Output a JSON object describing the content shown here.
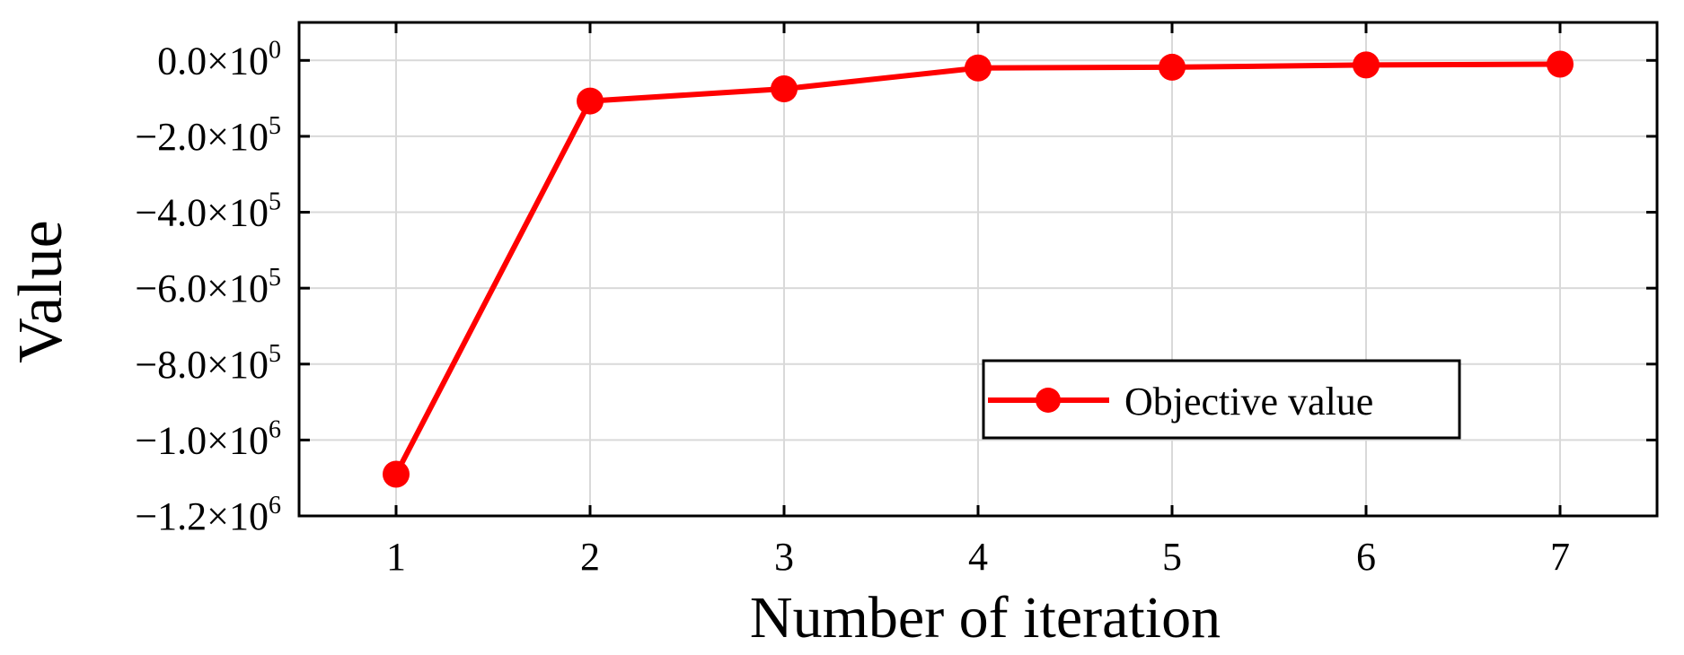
{
  "chart_data": {
    "type": "line",
    "xlabel": "Number of iteration",
    "ylabel": "Value",
    "x": [
      1,
      2,
      3,
      4,
      5,
      6,
      7
    ],
    "xlim": [
      0.5,
      7.5
    ],
    "ylim": [
      -1200000,
      100000
    ],
    "grid": true,
    "legend_position": "bottom-right",
    "x_ticks": [
      {
        "value": 1,
        "label": "1"
      },
      {
        "value": 2,
        "label": "2"
      },
      {
        "value": 3,
        "label": "3"
      },
      {
        "value": 4,
        "label": "4"
      },
      {
        "value": 5,
        "label": "5"
      },
      {
        "value": 6,
        "label": "6"
      },
      {
        "value": 7,
        "label": "7"
      }
    ],
    "y_ticks": [
      {
        "value": 0,
        "mantissa": "0.0×10",
        "exp": "0"
      },
      {
        "value": -200000,
        "mantissa": "−2.0×10",
        "exp": "5"
      },
      {
        "value": -400000,
        "mantissa": "−4.0×10",
        "exp": "5"
      },
      {
        "value": -600000,
        "mantissa": "−6.0×10",
        "exp": "5"
      },
      {
        "value": -800000,
        "mantissa": "−8.0×10",
        "exp": "5"
      },
      {
        "value": -1000000,
        "mantissa": "−1.0×10",
        "exp": "6"
      },
      {
        "value": -1200000,
        "mantissa": "−1.2×10",
        "exp": "6"
      }
    ],
    "series": [
      {
        "name": "Objective value",
        "color": "#ff0000",
        "values": [
          -1090000,
          -107000,
          -75000,
          -20000,
          -18000,
          -12000,
          -10000
        ]
      }
    ]
  }
}
